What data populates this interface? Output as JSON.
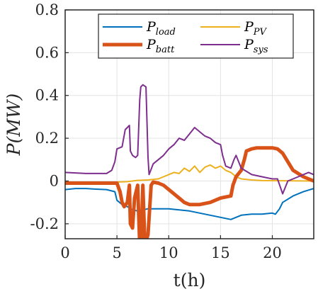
{
  "chart_data": {
    "type": "line",
    "xlabel": "t(h)",
    "ylabel": "P(MW)",
    "xlim": [
      0,
      24
    ],
    "ylim": [
      -0.27,
      0.8
    ],
    "xticks": [
      0,
      5,
      10,
      15,
      20
    ],
    "xtick_labels": [
      "0",
      "5",
      "10",
      "15",
      "20"
    ],
    "yticks": [
      -0.2,
      0,
      0.2,
      0.4,
      0.6,
      0.8
    ],
    "ytick_labels": [
      "-0.2",
      "0",
      "0.2",
      "0.4",
      "0.6",
      "0.8"
    ],
    "grid": true,
    "legend_position": "top",
    "series": [
      {
        "name": "P_load",
        "label_main": "P",
        "label_sub": "load",
        "color": "#0072bd",
        "width": 2,
        "x": [
          0,
          1,
          2,
          3,
          4,
          4.8,
          5,
          5.5,
          6,
          6.5,
          7,
          7.5,
          8,
          9,
          10,
          11,
          12,
          12.5,
          13,
          13.5,
          14,
          15,
          16,
          16.5,
          17,
          18,
          19,
          20,
          20.3,
          20.7,
          21,
          22,
          23,
          24
        ],
        "y": [
          -0.04,
          -0.035,
          -0.035,
          -0.038,
          -0.04,
          -0.05,
          -0.09,
          -0.11,
          -0.12,
          -0.135,
          -0.14,
          -0.135,
          -0.13,
          -0.13,
          -0.13,
          -0.135,
          -0.14,
          -0.145,
          -0.15,
          -0.155,
          -0.16,
          -0.17,
          -0.18,
          -0.17,
          -0.16,
          -0.155,
          -0.155,
          -0.15,
          -0.155,
          -0.13,
          -0.1,
          -0.07,
          -0.05,
          -0.035
        ]
      },
      {
        "name": "P_PV",
        "label_main": "P",
        "label_sub": "PV",
        "color": "#edb120",
        "width": 2,
        "x": [
          0,
          5,
          6,
          7,
          8,
          9,
          9.5,
          10,
          10.5,
          11,
          11.5,
          12,
          12.5,
          13,
          13.5,
          14,
          14.5,
          15,
          15.5,
          16,
          16.5,
          17,
          18,
          19,
          24
        ],
        "y": [
          -0.005,
          -0.005,
          -0.003,
          0.003,
          0.005,
          0.01,
          0.02,
          0.03,
          0.04,
          0.035,
          0.06,
          0.045,
          0.07,
          0.04,
          0.065,
          0.075,
          0.06,
          0.07,
          0.05,
          0.04,
          0.02,
          0.01,
          0.005,
          0.002,
          0.0
        ]
      },
      {
        "name": "P_batt",
        "label_main": "P",
        "label_sub": "batt",
        "color": "#d95319",
        "width": 5,
        "x": [
          0,
          5,
          5.3,
          5.5,
          5.7,
          6,
          6.2,
          6.3,
          6.5,
          6.7,
          7,
          7.2,
          7.3,
          7.5,
          7.7,
          8,
          8.3,
          8.5,
          9,
          9.5,
          10,
          10.5,
          11,
          11.5,
          12,
          13,
          14,
          15,
          16,
          16.2,
          16.5,
          17,
          17.3,
          17.5,
          18,
          18.5,
          19,
          20,
          20.5,
          21,
          22,
          23,
          23.5,
          24
        ],
        "y": [
          -0.01,
          -0.01,
          -0.05,
          -0.1,
          -0.12,
          -0.1,
          -0.02,
          -0.2,
          -0.22,
          -0.08,
          -0.02,
          -0.3,
          -0.34,
          -0.02,
          -0.3,
          -0.25,
          -0.02,
          -0.005,
          -0.01,
          -0.02,
          -0.04,
          -0.06,
          -0.08,
          -0.1,
          -0.11,
          -0.11,
          -0.1,
          -0.08,
          -0.07,
          -0.02,
          0.02,
          0.05,
          0.1,
          0.14,
          0.15,
          0.155,
          0.155,
          0.155,
          0.15,
          0.13,
          0.05,
          0.02,
          0.01,
          0.0
        ]
      },
      {
        "name": "P_sys",
        "label_main": "P",
        "label_sub": "sys",
        "color": "#7e2f8e",
        "width": 2,
        "x": [
          0,
          2,
          4,
          4.5,
          4.8,
          5,
          5.5,
          5.8,
          6,
          6.2,
          6.3,
          6.5,
          6.8,
          7,
          7.2,
          7.3,
          7.5,
          7.8,
          8,
          8.1,
          8.5,
          9,
          9.5,
          10,
          10.5,
          11,
          11.5,
          12,
          12.5,
          13,
          13.5,
          14,
          14.5,
          15,
          15.2,
          15.5,
          16,
          16.3,
          16.5,
          17,
          18,
          19,
          20,
          20.5,
          21,
          21.5,
          22,
          22.5,
          23,
          23.5,
          24
        ],
        "y": [
          0.04,
          0.035,
          0.035,
          0.05,
          0.09,
          0.15,
          0.16,
          0.24,
          0.25,
          0.26,
          0.14,
          0.12,
          0.11,
          0.12,
          0.38,
          0.44,
          0.45,
          0.44,
          0.11,
          0.03,
          0.08,
          0.1,
          0.12,
          0.15,
          0.17,
          0.2,
          0.19,
          0.22,
          0.25,
          0.23,
          0.21,
          0.2,
          0.18,
          0.17,
          0.12,
          0.07,
          0.06,
          0.1,
          0.12,
          0.06,
          0.03,
          0.02,
          0.01,
          0.01,
          -0.06,
          0.0,
          0.01,
          0.02,
          0.03,
          0.04,
          0.03
        ]
      }
    ]
  }
}
